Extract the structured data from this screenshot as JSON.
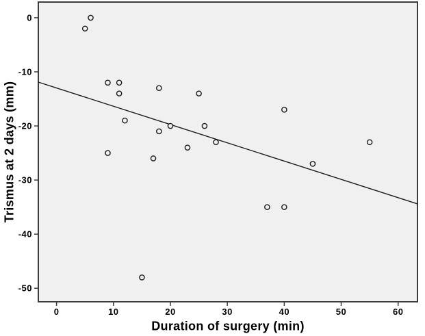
{
  "chart_data": {
    "type": "scatter",
    "title": "",
    "xlabel": "Duration of surgery (min)",
    "ylabel": "Trismus at 2 days (mm)",
    "x_ticks": [
      0,
      10,
      20,
      30,
      40,
      50,
      60
    ],
    "y_ticks": [
      0,
      -10,
      -20,
      -30,
      -40,
      -50
    ],
    "xlim": [
      -3.2,
      63.4
    ],
    "ylim": [
      -52.5,
      2.9
    ],
    "grid": false,
    "legend": null,
    "marker": "open-circle",
    "points": [
      [
        6,
        0
      ],
      [
        5,
        -2
      ],
      [
        9,
        -12
      ],
      [
        11,
        -12
      ],
      [
        18,
        -13
      ],
      [
        11,
        -14
      ],
      [
        25,
        -14
      ],
      [
        40,
        -17
      ],
      [
        12,
        -19
      ],
      [
        20,
        -20
      ],
      [
        26,
        -20
      ],
      [
        18,
        -21
      ],
      [
        28,
        -23
      ],
      [
        55,
        -23
      ],
      [
        23,
        -24
      ],
      [
        9,
        -25
      ],
      [
        17,
        -26
      ],
      [
        45,
        -27
      ],
      [
        37,
        -35
      ],
      [
        40,
        -35
      ],
      [
        15,
        -48
      ]
    ],
    "fit_line": {
      "x_start": -3.2,
      "y_start": -11.9,
      "x_end": 63.4,
      "y_end": -34.4
    },
    "colors": {
      "page_bg": "#ffffff",
      "plot_bg": "#f0f0f0",
      "frame": "#3c3c3c",
      "marker": "#1a1a1a",
      "line": "#1a1a1a",
      "text": "#000000"
    }
  }
}
